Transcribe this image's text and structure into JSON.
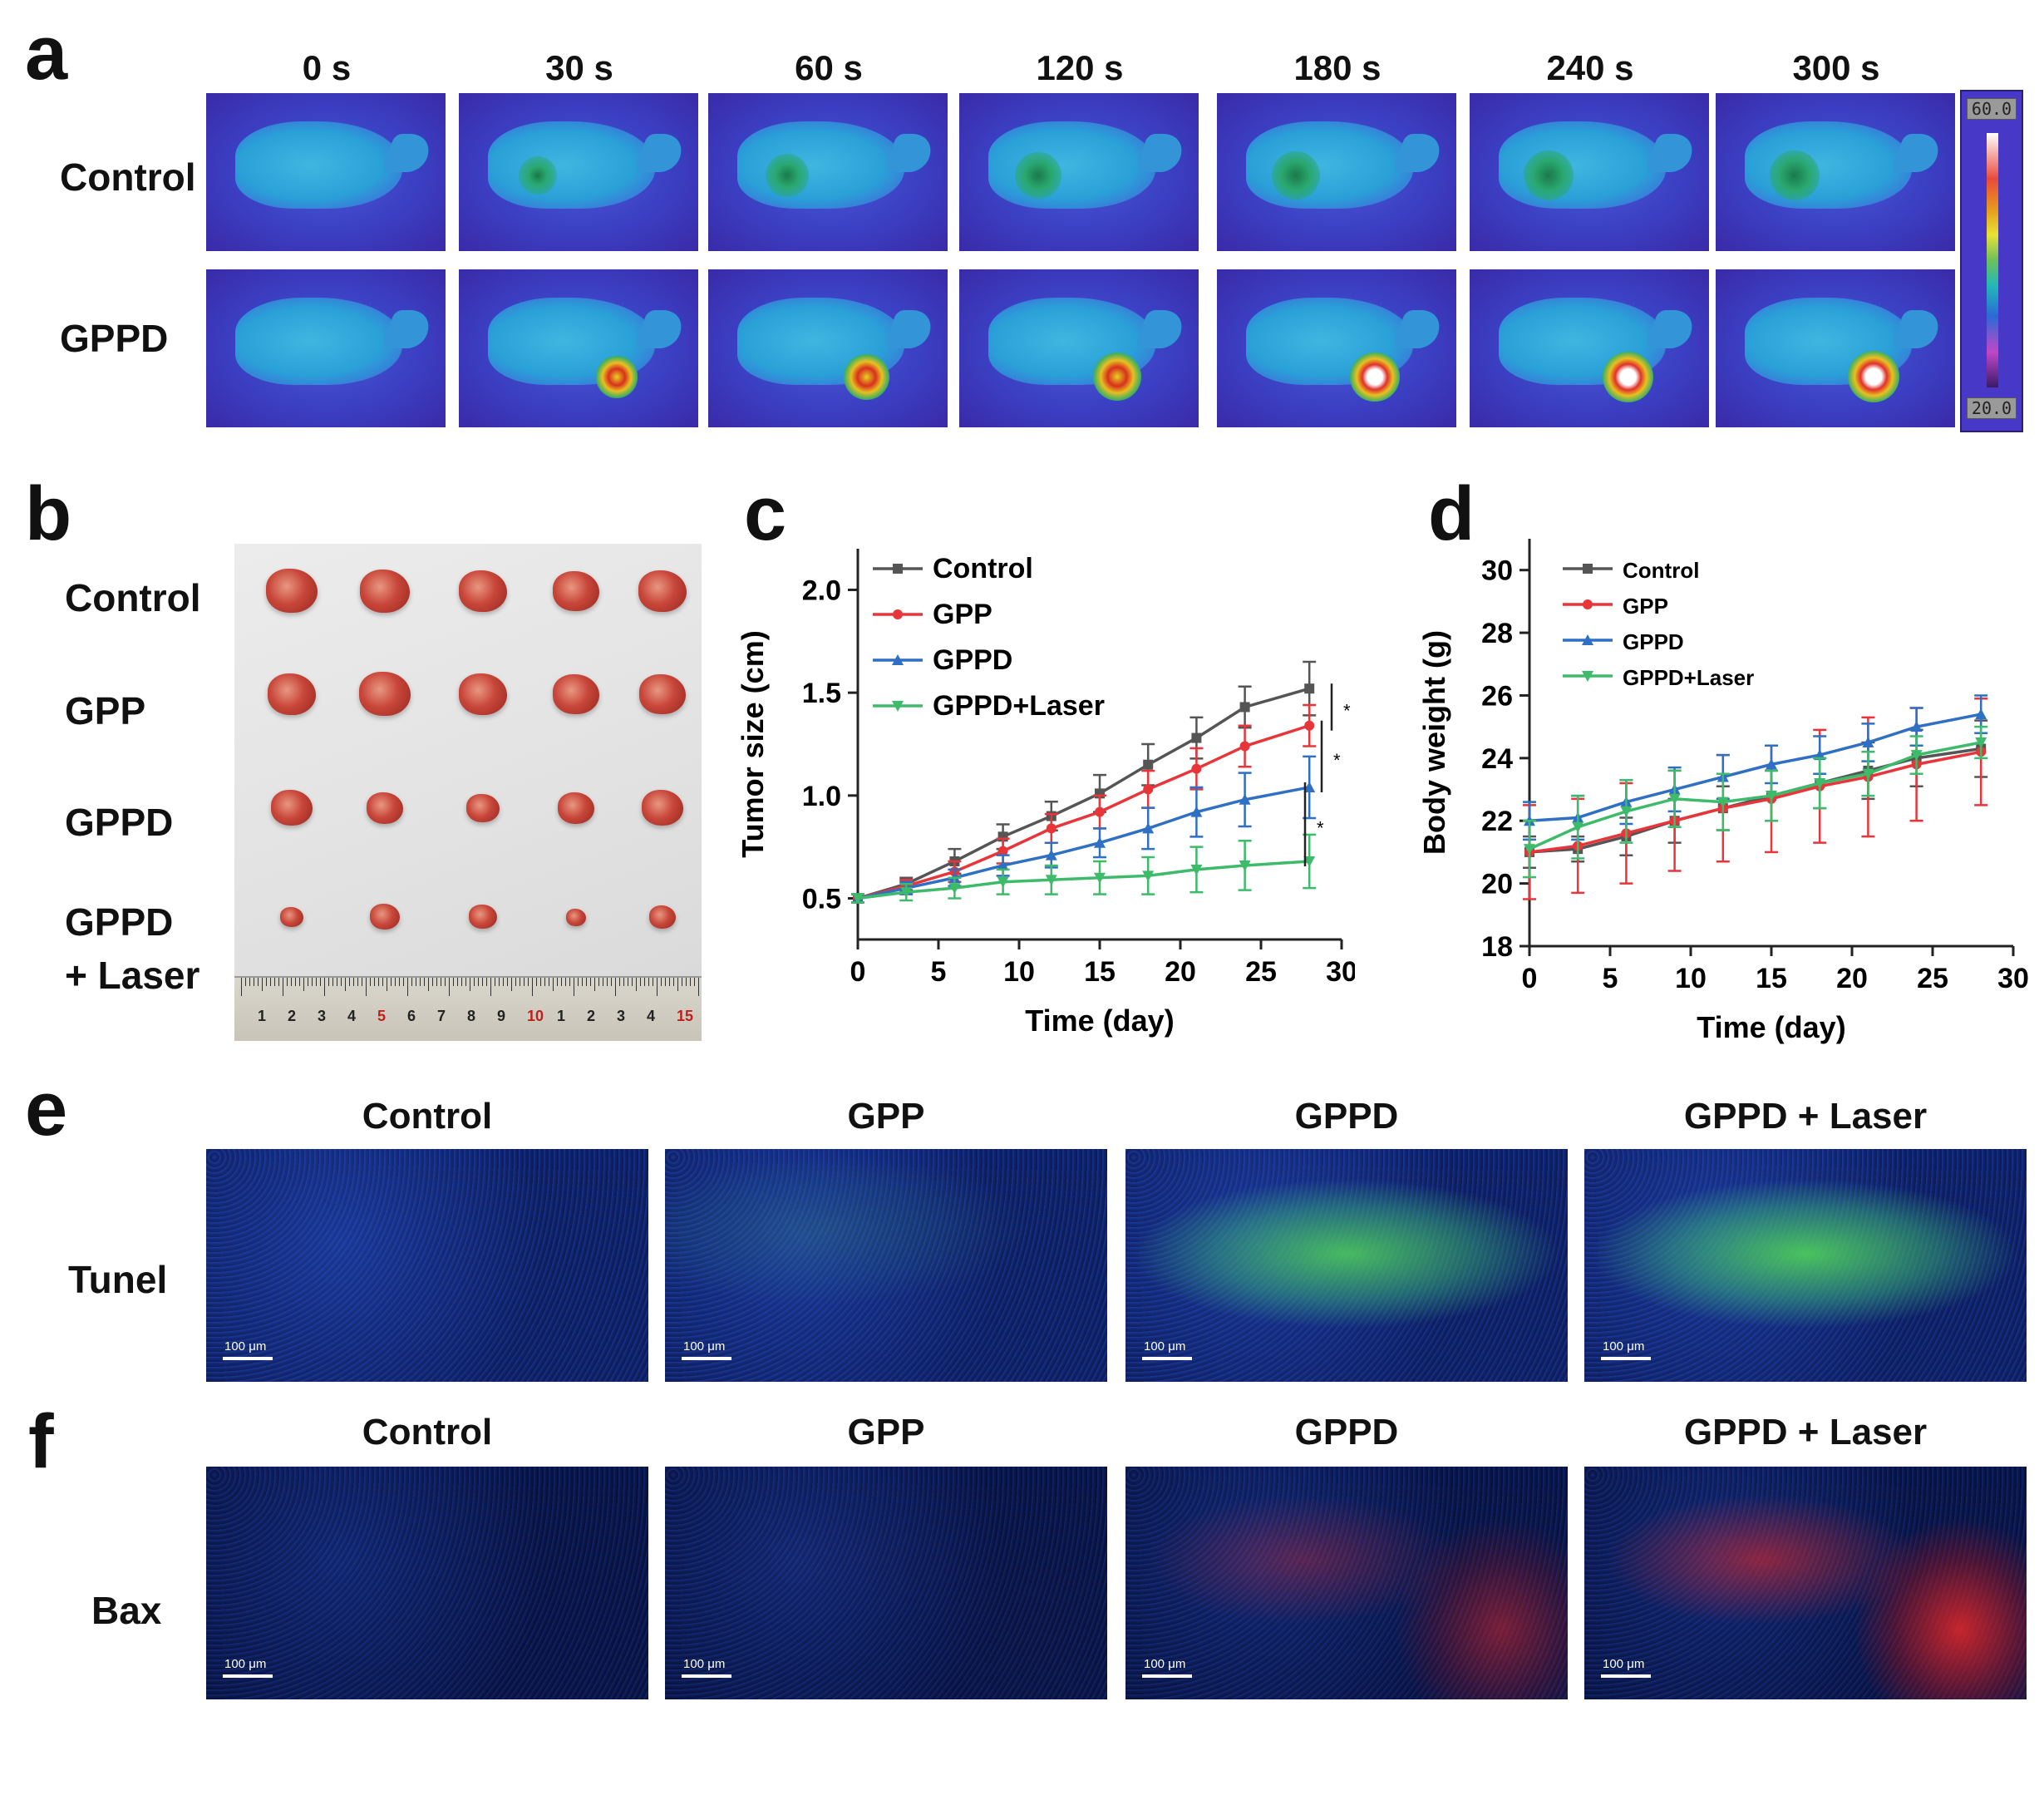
{
  "panel_a": {
    "letter": "a",
    "times": [
      "0 s",
      "30 s",
      "60 s",
      "120 s",
      "180 s",
      "240 s",
      "300 s"
    ],
    "rows": [
      "Control",
      "GPPD"
    ],
    "scale_max": "60.0",
    "scale_min": "20.0"
  },
  "panel_b": {
    "letter": "b",
    "rows": [
      "Control",
      "GPP",
      "GPPD",
      "GPPD",
      "+ Laser"
    ],
    "ruler_numbers": [
      "1",
      "2",
      "3",
      "4",
      "5",
      "6",
      "7",
      "8",
      "9",
      "10",
      "1",
      "2",
      "3",
      "4",
      "15"
    ]
  },
  "panel_e": {
    "letter": "e",
    "row_label": "Tunel",
    "titles": [
      "Control",
      "GPP",
      "GPPD",
      "GPPD + Laser"
    ],
    "scale": "100 μm"
  },
  "panel_f": {
    "letter": "f",
    "row_label": "Bax",
    "titles": [
      "Control",
      "GPP",
      "GPPD",
      "GPPD + Laser"
    ],
    "scale": "100 μm"
  },
  "colors": {
    "control": "#555555",
    "gpp": "#e8353a",
    "gppd": "#2f6fc4",
    "laser": "#3dbb6a"
  },
  "chart_data": [
    {
      "panel": "c",
      "type": "line",
      "xlabel": "Time (day)",
      "ylabel": "Tumor size (cm)",
      "xlim": [
        0,
        30
      ],
      "ylim": [
        0.3,
        2.2
      ],
      "xticks": [
        0,
        5,
        10,
        15,
        20,
        25,
        30
      ],
      "yticks": [
        0.5,
        1.0,
        1.5,
        2.0
      ],
      "ytick_labels": [
        "0.5",
        "1.0",
        "1.5",
        "2.0"
      ],
      "x": [
        0,
        3,
        6,
        9,
        12,
        15,
        18,
        21,
        24,
        28
      ],
      "legend_position": "top-left",
      "significance": [
        "*",
        "*",
        "*"
      ],
      "series": [
        {
          "name": "Control",
          "color": "#555555",
          "marker": "square",
          "values": [
            0.5,
            0.57,
            0.68,
            0.8,
            0.9,
            1.01,
            1.15,
            1.28,
            1.43,
            1.52
          ],
          "errors": [
            0.02,
            0.03,
            0.06,
            0.06,
            0.07,
            0.09,
            0.1,
            0.1,
            0.1,
            0.13
          ]
        },
        {
          "name": "GPP",
          "color": "#e8353a",
          "marker": "circle",
          "values": [
            0.5,
            0.56,
            0.63,
            0.73,
            0.84,
            0.92,
            1.03,
            1.13,
            1.24,
            1.34
          ],
          "errors": [
            0.02,
            0.03,
            0.05,
            0.06,
            0.07,
            0.08,
            0.09,
            0.1,
            0.1,
            0.1
          ]
        },
        {
          "name": "GPPD",
          "color": "#2f6fc4",
          "marker": "triangle",
          "values": [
            0.5,
            0.55,
            0.6,
            0.66,
            0.71,
            0.77,
            0.84,
            0.92,
            0.98,
            1.04
          ],
          "errors": [
            0.02,
            0.03,
            0.04,
            0.05,
            0.06,
            0.07,
            0.1,
            0.12,
            0.13,
            0.15
          ]
        },
        {
          "name": "GPPD+Laser",
          "color": "#3dbb6a",
          "marker": "triangle-down",
          "values": [
            0.5,
            0.53,
            0.55,
            0.58,
            0.59,
            0.6,
            0.61,
            0.64,
            0.66,
            0.68
          ],
          "errors": [
            0.02,
            0.04,
            0.05,
            0.06,
            0.07,
            0.08,
            0.09,
            0.11,
            0.12,
            0.13
          ]
        }
      ]
    },
    {
      "panel": "d",
      "type": "line",
      "xlabel": "Time (day)",
      "ylabel": "Body weight (g)",
      "xlim": [
        0,
        30
      ],
      "ylim": [
        18,
        31
      ],
      "xticks": [
        0,
        5,
        10,
        15,
        20,
        25,
        30
      ],
      "yticks": [
        18,
        20,
        22,
        24,
        26,
        28,
        30
      ],
      "x": [
        0,
        3,
        6,
        9,
        12,
        15,
        18,
        21,
        24,
        28
      ],
      "legend_position": "top-left",
      "series": [
        {
          "name": "Control",
          "color": "#555555",
          "marker": "square",
          "values": [
            21.0,
            21.1,
            21.5,
            22.0,
            22.4,
            22.8,
            23.2,
            23.6,
            24.0,
            24.3
          ],
          "errors": [
            0.5,
            0.4,
            0.6,
            0.7,
            0.7,
            0.8,
            0.8,
            0.9,
            0.9,
            0.9
          ]
        },
        {
          "name": "GPP",
          "color": "#e8353a",
          "marker": "circle",
          "values": [
            21.0,
            21.2,
            21.6,
            22.0,
            22.4,
            22.7,
            23.1,
            23.4,
            23.8,
            24.2
          ],
          "errors": [
            1.5,
            1.5,
            1.6,
            1.6,
            1.7,
            1.7,
            1.8,
            1.9,
            1.8,
            1.7
          ]
        },
        {
          "name": "GPPD",
          "color": "#2f6fc4",
          "marker": "triangle",
          "values": [
            22.0,
            22.1,
            22.6,
            23.0,
            23.4,
            23.8,
            24.1,
            24.5,
            25.0,
            25.4
          ],
          "errors": [
            0.6,
            0.7,
            0.7,
            0.7,
            0.7,
            0.6,
            0.6,
            0.6,
            0.6,
            0.6
          ]
        },
        {
          "name": "GPPD+Laser",
          "color": "#3dbb6a",
          "marker": "triangle-down",
          "values": [
            21.1,
            21.8,
            22.3,
            22.7,
            22.6,
            22.8,
            23.2,
            23.5,
            24.1,
            24.5
          ],
          "errors": [
            0.9,
            1.0,
            1.0,
            0.9,
            0.9,
            0.8,
            0.8,
            0.7,
            0.6,
            0.5
          ]
        }
      ]
    }
  ]
}
